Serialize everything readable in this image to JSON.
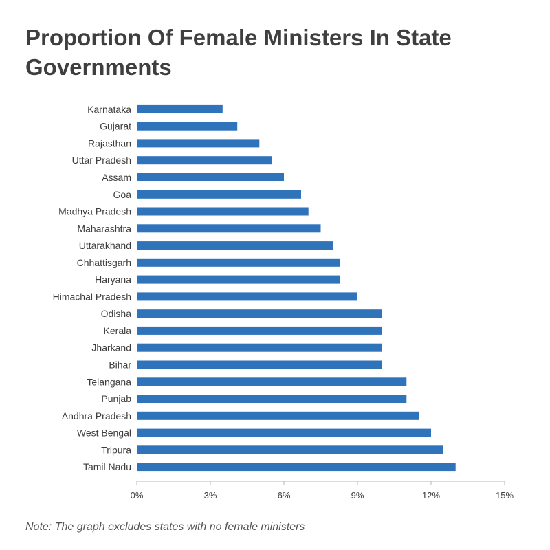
{
  "title": "Proportion Of Female Ministers In State Governments",
  "note": "Note: The graph excludes states with no female ministers",
  "colors": {
    "bar": "#2f73bb",
    "axis": "#b8b8b8",
    "text": "#3d3d3d"
  },
  "chart_data": {
    "type": "bar",
    "orientation": "horizontal",
    "title": "Proportion Of Female Ministers In State Governments",
    "xlim": [
      0,
      15
    ],
    "xticks": [
      0,
      3,
      6,
      9,
      12,
      15
    ],
    "xtick_labels": [
      "0%",
      "3%",
      "6%",
      "9%",
      "12%",
      "15%"
    ],
    "grid": false,
    "categories": [
      "Karnataka",
      "Gujarat",
      "Rajasthan",
      "Uttar Pradesh",
      "Assam",
      "Goa",
      "Madhya Pradesh",
      "Maharashtra",
      "Uttarakhand",
      "Chhattisgarh",
      "Haryana",
      "Himachal Pradesh",
      "Odisha",
      "Kerala",
      "Jharkand",
      "Bihar",
      "Telangana",
      "Punjab",
      "Andhra Pradesh",
      "West Bengal",
      "Tripura",
      "Tamil Nadu"
    ],
    "values": [
      3.5,
      4.1,
      5.0,
      5.5,
      6.0,
      6.7,
      7.0,
      7.5,
      8.0,
      8.3,
      8.3,
      9.0,
      10.0,
      10.0,
      10.0,
      10.0,
      11.0,
      11.0,
      11.5,
      12.0,
      12.5,
      13.0
    ]
  }
}
